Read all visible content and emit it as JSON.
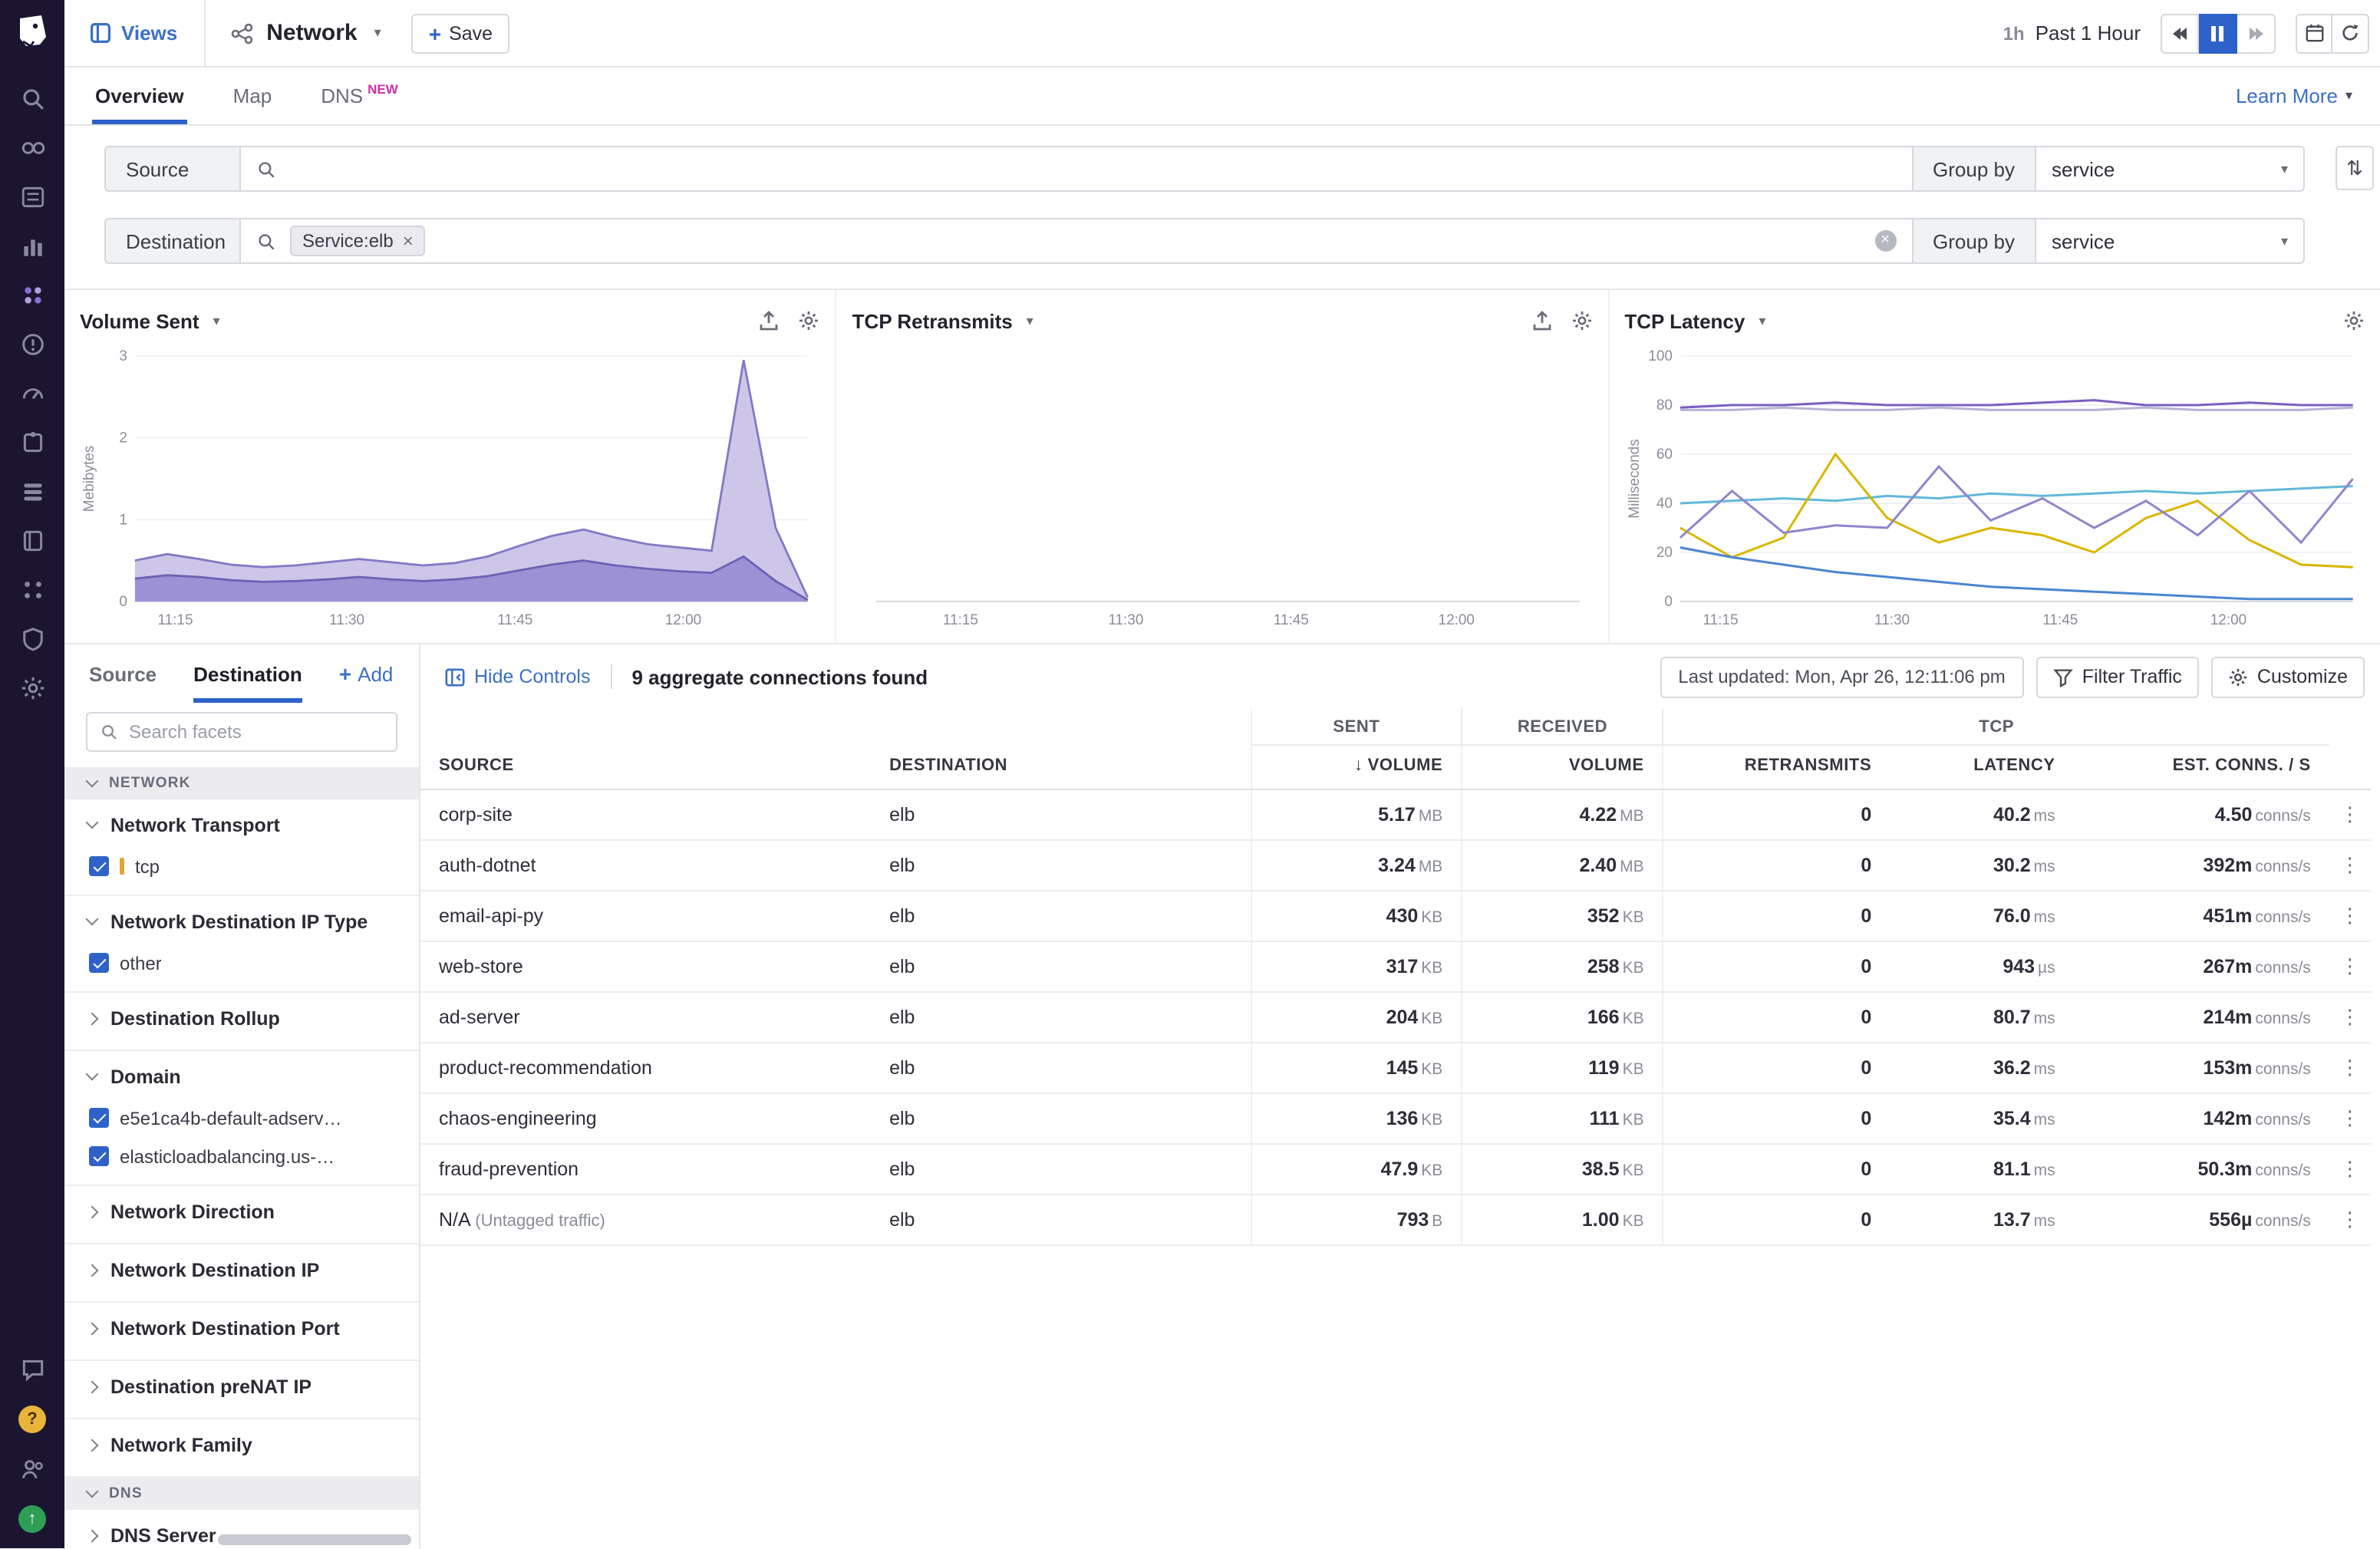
{
  "brand": {
    "accent_blue": "#3b70c4",
    "active_blue": "#2d62c9",
    "sidebar_bg": "#1b1532",
    "badge_pink": "#cc30ad",
    "series_purple": "#7a6ebf",
    "swatch_orange": "#e0a63a"
  },
  "icons": {
    "gear": "gear-icon",
    "export": "export-icon",
    "search": "magnifier-icon",
    "kebab": "⋮",
    "caret_down": "▾",
    "sort": "⇅",
    "close": "×",
    "sort_arrow_down": "↓",
    "plus": "+"
  },
  "topbar": {
    "views_label": "Views",
    "page_title": "Network",
    "save_label": "Save",
    "time_short": "1h",
    "time_label": "Past 1 Hour"
  },
  "tabs": [
    {
      "label": "Overview",
      "active": true
    },
    {
      "label": "Map",
      "active": false
    },
    {
      "label": "DNS",
      "active": false,
      "badge": "NEW"
    }
  ],
  "tabs_right": {
    "learn_more": "Learn More"
  },
  "filters": {
    "source": {
      "label": "Source",
      "group_by_label": "Group by",
      "group_by_value": "service"
    },
    "destination": {
      "label": "Destination",
      "tag": "Service:elb",
      "group_by_label": "Group by",
      "group_by_value": "service"
    }
  },
  "chart_data": [
    {
      "type": "area",
      "title": "Volume Sent",
      "icons": [
        "export",
        "settings"
      ],
      "ylabel": "Mebibytes",
      "ylim": [
        0,
        3
      ],
      "yticks": [
        0,
        1,
        2,
        3
      ],
      "xticks": [
        "11:15",
        "11:30",
        "11:45",
        "12:00"
      ],
      "xtick_pos": [
        0.06,
        0.315,
        0.565,
        0.815
      ],
      "series": [
        {
          "name": "volume-total",
          "color": "#8478c4",
          "fill": "#cdc6e8",
          "values": [
            0.5,
            0.58,
            0.52,
            0.45,
            0.42,
            0.44,
            0.48,
            0.52,
            0.48,
            0.44,
            0.47,
            0.55,
            0.68,
            0.8,
            0.88,
            0.78,
            0.7,
            0.66,
            0.62,
            2.95,
            0.9,
            0.05
          ]
        },
        {
          "name": "volume-lower",
          "color": "#6e60b5",
          "fill": "#9c91d4",
          "values": [
            0.28,
            0.32,
            0.3,
            0.26,
            0.24,
            0.25,
            0.27,
            0.3,
            0.27,
            0.25,
            0.27,
            0.31,
            0.38,
            0.45,
            0.5,
            0.44,
            0.4,
            0.37,
            0.35,
            0.55,
            0.25,
            0.02
          ]
        }
      ]
    },
    {
      "type": "line",
      "title": "TCP Retransmits",
      "icons": [
        "export",
        "settings"
      ],
      "ylabel": "",
      "ylim": [
        0,
        1
      ],
      "yticks": [],
      "xticks": [
        "11:15",
        "11:30",
        "11:45",
        "12:00"
      ],
      "xtick_pos": [
        0.12,
        0.355,
        0.59,
        0.825
      ],
      "series": []
    },
    {
      "type": "line",
      "title": "TCP Latency",
      "icons": [
        "settings"
      ],
      "ylabel": "Milliseconds",
      "ylim": [
        0,
        100
      ],
      "yticks": [
        0,
        20,
        40,
        60,
        80,
        100
      ],
      "xticks": [
        "11:15",
        "11:30",
        "11:45",
        "12:00"
      ],
      "xtick_pos": [
        0.06,
        0.315,
        0.565,
        0.815
      ],
      "series": [
        {
          "name": "latency-a",
          "color": "#7a5fc0",
          "values": [
            79,
            80,
            80,
            81,
            80,
            80,
            80,
            81,
            82,
            80,
            80,
            81,
            80,
            80
          ]
        },
        {
          "name": "latency-b",
          "color": "#b8b3d6",
          "values": [
            78,
            78,
            79,
            78,
            78,
            79,
            78,
            78,
            78,
            79,
            78,
            78,
            78,
            79
          ]
        },
        {
          "name": "latency-c",
          "color": "#62b8d9",
          "values": [
            40,
            41,
            42,
            41,
            43,
            42,
            44,
            43,
            44,
            45,
            44,
            45,
            46,
            47
          ]
        },
        {
          "name": "latency-d",
          "color": "#d9b600",
          "values": [
            30,
            18,
            26,
            60,
            34,
            24,
            30,
            27,
            20,
            34,
            41,
            25,
            15,
            14
          ]
        },
        {
          "name": "latency-e",
          "color": "#8f86cd",
          "values": [
            26,
            45,
            28,
            31,
            30,
            55,
            33,
            42,
            30,
            41,
            27,
            45,
            24,
            50
          ]
        },
        {
          "name": "latency-f",
          "color": "#4a85d0",
          "values": [
            22,
            18,
            15,
            12,
            10,
            8,
            6,
            5,
            4,
            3,
            2,
            1,
            1,
            1
          ]
        }
      ]
    }
  ],
  "controls": {
    "hide_controls": "Hide Controls",
    "found_text": "9 aggregate connections found",
    "last_updated": "Last updated: Mon, Apr 26, 12:11:06 pm",
    "filter_traffic": "Filter Traffic",
    "customize": "Customize"
  },
  "facets": {
    "tabs": [
      {
        "label": "Source",
        "active": false
      },
      {
        "label": "Destination",
        "active": true
      }
    ],
    "add_label": "Add",
    "search_placeholder": "Search facets",
    "sections": [
      {
        "title": "NETWORK",
        "groups": [
          {
            "name": "Network Transport",
            "expanded": true,
            "items": [
              {
                "label": "tcp",
                "checked": true,
                "swatch": true
              }
            ]
          },
          {
            "name": "Network Destination IP Type",
            "expanded": true,
            "items": [
              {
                "label": "other",
                "checked": true
              }
            ]
          },
          {
            "name": "Destination Rollup",
            "expanded": false,
            "items": []
          },
          {
            "name": "Domain",
            "expanded": true,
            "items": [
              {
                "label": "e5e1ca4b-default-adserv…",
                "checked": true
              },
              {
                "label": "elasticloadbalancing.us-…",
                "checked": true
              }
            ]
          },
          {
            "name": "Network Direction",
            "expanded": false,
            "items": []
          },
          {
            "name": "Network Destination IP",
            "expanded": false,
            "items": []
          },
          {
            "name": "Network Destination Port",
            "expanded": false,
            "items": []
          },
          {
            "name": "Destination preNAT IP",
            "expanded": false,
            "items": []
          },
          {
            "name": "Network Family",
            "expanded": false,
            "items": []
          }
        ]
      },
      {
        "title": "DNS",
        "groups": [
          {
            "name": "DNS Server",
            "expanded": false,
            "items": []
          }
        ]
      }
    ]
  },
  "table": {
    "header": {
      "sent_group": "SENT",
      "received_group": "RECEIVED",
      "tcp_group": "TCP",
      "source": "SOURCE",
      "destination": "DESTINATION",
      "volume_sent": "VOLUME",
      "volume_received": "VOLUME",
      "retransmits": "RETRANSMITS",
      "latency": "LATENCY",
      "est_conns": "EST. CONNS. / S",
      "sort_arrow": "↓"
    },
    "rows": [
      {
        "source": "corp-site",
        "destination": "elb",
        "sent": {
          "v": "5.17",
          "u": "MB"
        },
        "received": {
          "v": "4.22",
          "u": "MB"
        },
        "retransmits": "0",
        "latency": {
          "v": "40.2",
          "u": "ms"
        },
        "conns": {
          "v": "4.50",
          "u": "conns/s"
        }
      },
      {
        "source": "auth-dotnet",
        "destination": "elb",
        "sent": {
          "v": "3.24",
          "u": "MB"
        },
        "received": {
          "v": "2.40",
          "u": "MB"
        },
        "retransmits": "0",
        "latency": {
          "v": "30.2",
          "u": "ms"
        },
        "conns": {
          "v": "392m",
          "u": "conns/s"
        }
      },
      {
        "source": "email-api-py",
        "destination": "elb",
        "sent": {
          "v": "430",
          "u": "KB"
        },
        "received": {
          "v": "352",
          "u": "KB"
        },
        "retransmits": "0",
        "latency": {
          "v": "76.0",
          "u": "ms"
        },
        "conns": {
          "v": "451m",
          "u": "conns/s"
        }
      },
      {
        "source": "web-store",
        "destination": "elb",
        "sent": {
          "v": "317",
          "u": "KB"
        },
        "received": {
          "v": "258",
          "u": "KB"
        },
        "retransmits": "0",
        "latency": {
          "v": "943",
          "u": "µs"
        },
        "conns": {
          "v": "267m",
          "u": "conns/s"
        }
      },
      {
        "source": "ad-server",
        "destination": "elb",
        "sent": {
          "v": "204",
          "u": "KB"
        },
        "received": {
          "v": "166",
          "u": "KB"
        },
        "retransmits": "0",
        "latency": {
          "v": "80.7",
          "u": "ms"
        },
        "conns": {
          "v": "214m",
          "u": "conns/s"
        }
      },
      {
        "source": "product-recommendation",
        "destination": "elb",
        "sent": {
          "v": "145",
          "u": "KB"
        },
        "received": {
          "v": "119",
          "u": "KB"
        },
        "retransmits": "0",
        "latency": {
          "v": "36.2",
          "u": "ms"
        },
        "conns": {
          "v": "153m",
          "u": "conns/s"
        }
      },
      {
        "source": "chaos-engineering",
        "destination": "elb",
        "sent": {
          "v": "136",
          "u": "KB"
        },
        "received": {
          "v": "111",
          "u": "KB"
        },
        "retransmits": "0",
        "latency": {
          "v": "35.4",
          "u": "ms"
        },
        "conns": {
          "v": "142m",
          "u": "conns/s"
        }
      },
      {
        "source": "fraud-prevention",
        "destination": "elb",
        "sent": {
          "v": "47.9",
          "u": "KB"
        },
        "received": {
          "v": "38.5",
          "u": "KB"
        },
        "retransmits": "0",
        "latency": {
          "v": "81.1",
          "u": "ms"
        },
        "conns": {
          "v": "50.3m",
          "u": "conns/s"
        }
      },
      {
        "source": "N/A",
        "note": "(Untagged traffic)",
        "destination": "elb",
        "sent": {
          "v": "793",
          "u": "B"
        },
        "received": {
          "v": "1.00",
          "u": "KB"
        },
        "retransmits": "0",
        "latency": {
          "v": "13.7",
          "u": "ms"
        },
        "conns": {
          "v": "556µ",
          "u": "conns/s"
        }
      }
    ]
  }
}
